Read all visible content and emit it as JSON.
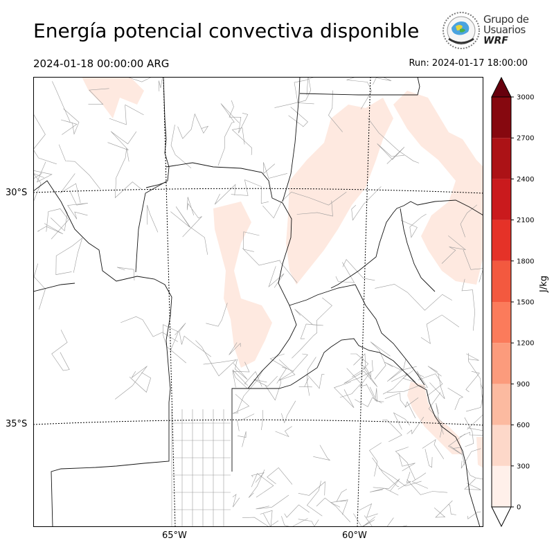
{
  "header": {
    "title": "Energía potencial convectiva disponible",
    "valid_time": "2024-01-18 00:00:00 ARG",
    "run_time": "Run: 2024-01-17 18:00:00"
  },
  "logo": {
    "line1": "Grupo de",
    "line2": "Usuarios",
    "line3": "WRF"
  },
  "map": {
    "lat_labels": [
      "30°S",
      "35°S"
    ],
    "lon_labels": [
      "65°W",
      "60°W"
    ],
    "variable": "CAPE",
    "shading_color": "#fee9e0",
    "border_color": "#000000",
    "dept_color": "#888888"
  },
  "colorbar": {
    "label": "J/kg",
    "ticks": [
      "0",
      "300",
      "600",
      "900",
      "1200",
      "1500",
      "1800",
      "2100",
      "2400",
      "2700",
      "3000"
    ],
    "colors": [
      "#fff0ea",
      "#fdd8c9",
      "#fcbaa0",
      "#fc9b7c",
      "#fb7b5b",
      "#f3593f",
      "#e53228",
      "#ca1a1d",
      "#ac1216",
      "#86080f"
    ],
    "over_color": "#67000d",
    "under_color": "#ffffff"
  }
}
